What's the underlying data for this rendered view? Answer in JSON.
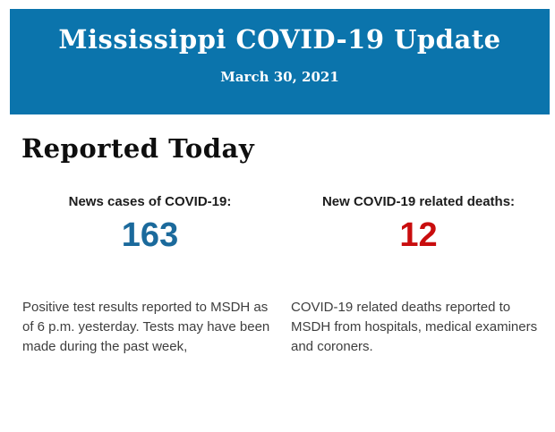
{
  "header": {
    "title": "Mississippi COVID-19 Update",
    "date": "March 30, 2021",
    "background_color": "#0b74ac",
    "text_color": "#ffffff"
  },
  "main": {
    "section_title": "Reported Today",
    "stats": [
      {
        "label": "News cases of COVID-19:",
        "value": "163",
        "value_color": "#1b6a9c",
        "description": "Positive test results reported to MSDH as of 6 p.m. yesterday. Tests may have been made during the past week,"
      },
      {
        "label": "New COVID-19 related deaths:",
        "value": "12",
        "value_color": "#c90d0e",
        "description": "COVID-19 related deaths reported to MSDH from hospitals, medical examiners and coroners."
      }
    ]
  }
}
